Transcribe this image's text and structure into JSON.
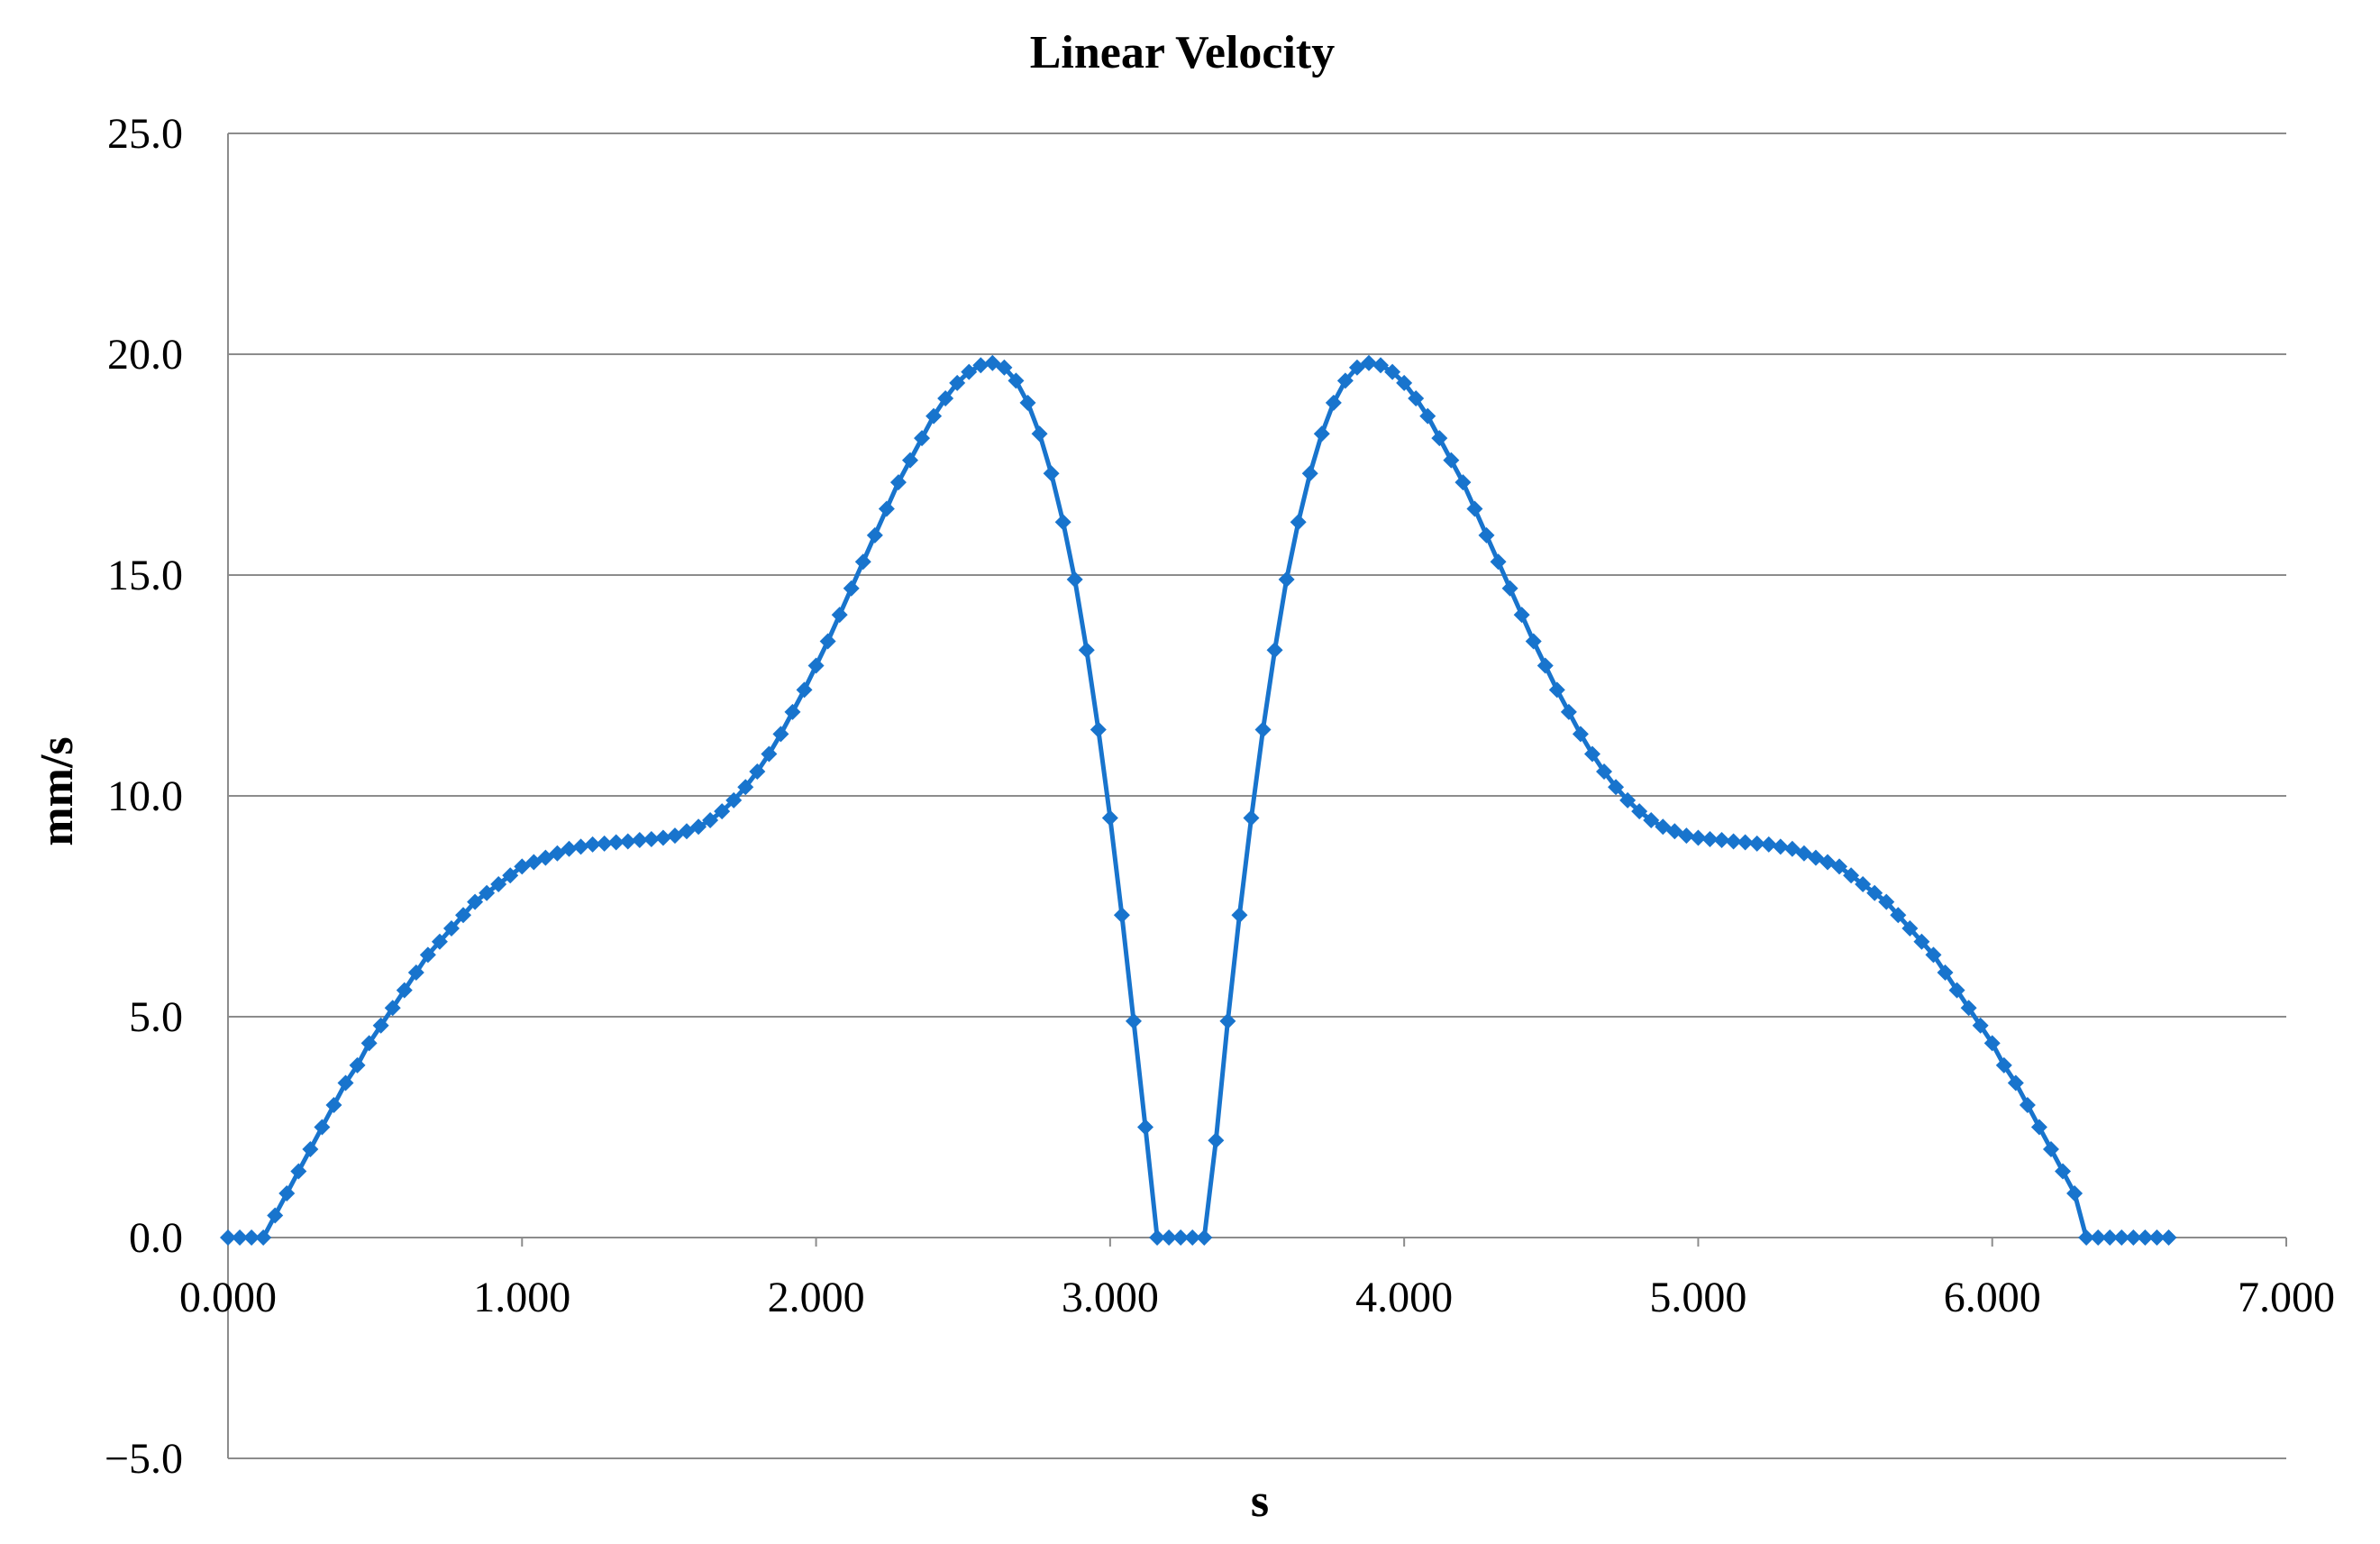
{
  "chart_data": {
    "type": "line",
    "title": "Linear Velocity",
    "xlabel": "s",
    "ylabel": "mm/s",
    "xlim": [
      0,
      7
    ],
    "ylim": [
      -5,
      25
    ],
    "x_ticks": [
      "0.000",
      "1.000",
      "2.000",
      "3.000",
      "4.000",
      "5.000",
      "6.000",
      "7.000"
    ],
    "y_ticks": [
      "−5.0",
      "0.0",
      "5.0",
      "10.0",
      "15.0",
      "20.0",
      "25.0"
    ],
    "grid": "horizontal",
    "legend": "none",
    "color": "#1874CD",
    "series": [
      {
        "marker": "diamond",
        "x": [
          0.0,
          0.04,
          0.08,
          0.12,
          0.16,
          0.2,
          0.24,
          0.28,
          0.32,
          0.36,
          0.4,
          0.44,
          0.48,
          0.52,
          0.56,
          0.6,
          0.64,
          0.68,
          0.72,
          0.76,
          0.8,
          0.84,
          0.88,
          0.92,
          0.96,
          1.0,
          1.04,
          1.08,
          1.12,
          1.16,
          1.2,
          1.24,
          1.28,
          1.32,
          1.36,
          1.4,
          1.44,
          1.48,
          1.52,
          1.56,
          1.6,
          1.64,
          1.68,
          1.72,
          1.76,
          1.8,
          1.84,
          1.88,
          1.92,
          1.96,
          2.0,
          2.04,
          2.08,
          2.12,
          2.16,
          2.2,
          2.24,
          2.28,
          2.32,
          2.36,
          2.4,
          2.44,
          2.48,
          2.52,
          2.56,
          2.6,
          2.64,
          2.68,
          2.72,
          2.76,
          2.8,
          2.84,
          2.88,
          2.92,
          2.96,
          3.0,
          3.04,
          3.08,
          3.12,
          3.16,
          3.2,
          3.24,
          3.28,
          3.32,
          3.36,
          3.4,
          3.44,
          3.48,
          3.52,
          3.56,
          3.6,
          3.64,
          3.68,
          3.72,
          3.76,
          3.8,
          3.84,
          3.88,
          3.92,
          3.96,
          4.0,
          4.04,
          4.08,
          4.12,
          4.16,
          4.2,
          4.24,
          4.28,
          4.32,
          4.36,
          4.4,
          4.44,
          4.48,
          4.52,
          4.56,
          4.6,
          4.64,
          4.68,
          4.72,
          4.76,
          4.8,
          4.84,
          4.88,
          4.92,
          4.96,
          5.0,
          5.04,
          5.08,
          5.12,
          5.16,
          5.2,
          5.24,
          5.28,
          5.32,
          5.36,
          5.4,
          5.44,
          5.48,
          5.52,
          5.56,
          5.6,
          5.64,
          5.68,
          5.72,
          5.76,
          5.8,
          5.84,
          5.88,
          5.92,
          5.96,
          6.0,
          6.04,
          6.08,
          6.12,
          6.16,
          6.2,
          6.24,
          6.28,
          6.32,
          6.36,
          6.4,
          6.44,
          6.48,
          6.52,
          6.56,
          6.6
        ],
        "y": [
          0.0,
          0.0,
          0.0,
          0.0,
          0.5,
          1.0,
          1.5,
          2.0,
          2.5,
          3.0,
          3.5,
          3.9,
          4.4,
          4.8,
          5.2,
          5.6,
          6.0,
          6.4,
          6.7,
          7.0,
          7.3,
          7.6,
          7.8,
          8.0,
          8.2,
          8.4,
          8.5,
          8.6,
          8.7,
          8.8,
          8.85,
          8.9,
          8.92,
          8.95,
          8.97,
          9.0,
          9.02,
          9.05,
          9.1,
          9.2,
          9.3,
          9.45,
          9.65,
          9.9,
          10.2,
          10.55,
          10.95,
          11.4,
          11.9,
          12.4,
          12.95,
          13.5,
          14.1,
          14.7,
          15.3,
          15.9,
          16.5,
          17.1,
          17.6,
          18.1,
          18.6,
          19.0,
          19.35,
          19.6,
          19.75,
          19.8,
          19.7,
          19.4,
          18.9,
          18.2,
          17.3,
          16.2,
          14.9,
          13.3,
          11.5,
          9.5,
          7.3,
          4.9,
          2.5,
          0.0,
          0.0,
          0.0,
          0.0,
          0.0,
          2.2,
          4.9,
          7.3,
          9.5,
          11.5,
          13.3,
          14.9,
          16.2,
          17.3,
          18.2,
          18.9,
          19.4,
          19.7,
          19.8,
          19.75,
          19.6,
          19.35,
          19.0,
          18.6,
          18.1,
          17.6,
          17.1,
          16.5,
          15.9,
          15.3,
          14.7,
          14.1,
          13.5,
          12.95,
          12.4,
          11.9,
          11.4,
          10.95,
          10.55,
          10.2,
          9.9,
          9.65,
          9.45,
          9.3,
          9.2,
          9.1,
          9.05,
          9.02,
          9.0,
          8.97,
          8.95,
          8.92,
          8.9,
          8.85,
          8.8,
          8.7,
          8.6,
          8.5,
          8.4,
          8.2,
          8.0,
          7.8,
          7.6,
          7.3,
          7.0,
          6.7,
          6.4,
          6.0,
          5.6,
          5.2,
          4.8,
          4.4,
          3.9,
          3.5,
          3.0,
          2.5,
          2.0,
          1.5,
          1.0,
          0.0,
          0.0,
          0.0,
          0.0,
          0.0,
          0.0,
          0.0,
          0.0
        ]
      }
    ]
  }
}
